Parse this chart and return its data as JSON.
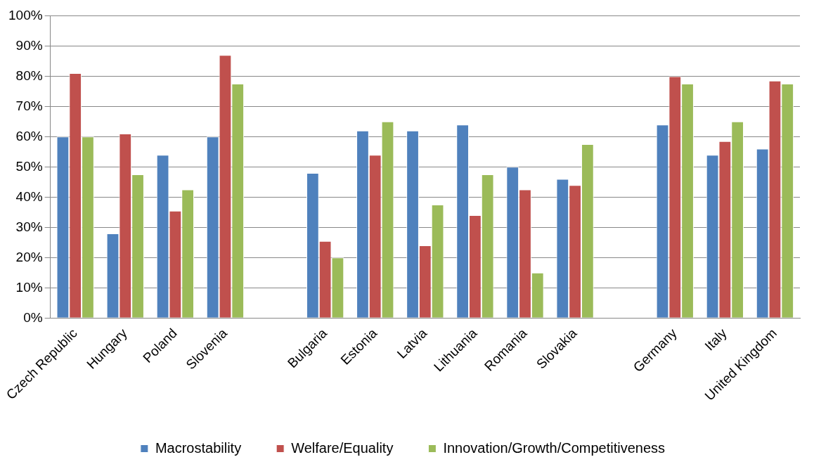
{
  "chart_data": {
    "type": "bar",
    "categories": [
      "Czech Republic",
      "Hungary",
      "Poland",
      "Slovenia",
      null,
      "Bulgaria",
      "Estonia",
      "Latvia",
      "Lithuania",
      "Romania",
      "Slovakia",
      null,
      "Germany",
      "Italy",
      "United Kingdom"
    ],
    "series": [
      {
        "name": "Macrostability",
        "color": "#4f81bd",
        "values": [
          60,
          28,
          54,
          60,
          null,
          48,
          62,
          62,
          64,
          50,
          46,
          null,
          64,
          54,
          56
        ]
      },
      {
        "name": "Welfare/Equality",
        "color": "#c0504d",
        "values": [
          81,
          61,
          35.5,
          87,
          null,
          25.5,
          54,
          24,
          34,
          42.5,
          44,
          null,
          80,
          58.5,
          78.5
        ]
      },
      {
        "name": "Innovation/Growth/Competitiveness",
        "color": "#9bbb59",
        "values": [
          60,
          47.5,
          42.5,
          77.5,
          null,
          20,
          65,
          37.5,
          47.5,
          15,
          57.5,
          null,
          77.5,
          65,
          77.5
        ]
      }
    ],
    "ylim": [
      0,
      100
    ],
    "yticks": [
      {
        "value": 0,
        "label": "0%"
      },
      {
        "value": 10,
        "label": "10%"
      },
      {
        "value": 20,
        "label": "20%"
      },
      {
        "value": 30,
        "label": "30%"
      },
      {
        "value": 40,
        "label": "40%"
      },
      {
        "value": 50,
        "label": "50%"
      },
      {
        "value": 60,
        "label": "60%"
      },
      {
        "value": 70,
        "label": "70%"
      },
      {
        "value": 80,
        "label": "80%"
      },
      {
        "value": 90,
        "label": "90%"
      },
      {
        "value": 100,
        "label": "100%"
      }
    ],
    "grid": "y",
    "legend": "bottom"
  }
}
